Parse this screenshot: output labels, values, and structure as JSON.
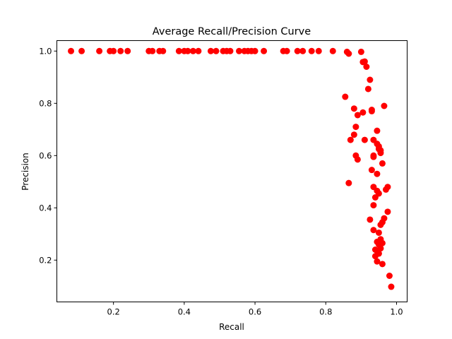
{
  "chart_data": {
    "type": "scatter",
    "title": "Average Recall/Precision Curve",
    "xlabel": "Recall",
    "ylabel": "Precision",
    "xlim": [
      0.04,
      1.03
    ],
    "ylim": [
      0.04,
      1.04
    ],
    "xticks": [
      0.2,
      0.4,
      0.6,
      0.8,
      1.0
    ],
    "xtick_labels": [
      "0.2",
      "0.4",
      "0.6",
      "0.8",
      "1.0"
    ],
    "yticks": [
      0.2,
      0.4,
      0.6,
      0.8,
      1.0
    ],
    "ytick_labels": [
      "0.2",
      "0.4",
      "0.6",
      "0.8",
      "1.0"
    ],
    "grid": false,
    "marker_color": "#ff0000",
    "series": [
      {
        "x": [
          0.08,
          0.11,
          0.16,
          0.19,
          0.2,
          0.22,
          0.24,
          0.3,
          0.31,
          0.33,
          0.34,
          0.385,
          0.4,
          0.41,
          0.425,
          0.44,
          0.475,
          0.49,
          0.51,
          0.52,
          0.53,
          0.555,
          0.57,
          0.58,
          0.59,
          0.6,
          0.625,
          0.68,
          0.69,
          0.72,
          0.735,
          0.76,
          0.78,
          0.82,
          0.86,
          0.865,
          0.9,
          0.905,
          0.91,
          0.915,
          0.925,
          0.855,
          0.92,
          0.93,
          0.965,
          0.88,
          0.89,
          0.905,
          0.93,
          0.935,
          0.945,
          0.885,
          0.95,
          0.88,
          0.87,
          0.91,
          0.935,
          0.945,
          0.95,
          0.955,
          0.885,
          0.935,
          0.955,
          0.89,
          0.96,
          0.93,
          0.945,
          0.865,
          0.935,
          0.975,
          0.97,
          0.945,
          0.95,
          0.94,
          0.935,
          0.975,
          0.965,
          0.96,
          0.925,
          0.955,
          0.935,
          0.95,
          0.945,
          0.955,
          0.96,
          0.95,
          0.94,
          0.955,
          0.945,
          0.95,
          0.94,
          0.945,
          0.96,
          0.98,
          0.985
        ],
        "y": [
          1.0,
          1.0,
          1.0,
          1.0,
          1.0,
          1.0,
          1.0,
          1.0,
          1.0,
          1.0,
          1.0,
          1.0,
          1.0,
          1.0,
          1.0,
          1.0,
          1.0,
          1.0,
          1.0,
          1.0,
          1.0,
          1.0,
          1.0,
          1.0,
          1.0,
          1.0,
          1.0,
          1.0,
          1.0,
          1.0,
          1.0,
          1.0,
          1.0,
          1.0,
          0.997,
          0.99,
          0.997,
          0.958,
          0.96,
          0.94,
          0.89,
          0.825,
          0.855,
          0.775,
          0.79,
          0.78,
          0.755,
          0.765,
          0.77,
          0.66,
          0.695,
          0.71,
          0.635,
          0.68,
          0.66,
          0.66,
          0.6,
          0.645,
          0.625,
          0.61,
          0.6,
          0.595,
          0.62,
          0.585,
          0.57,
          0.545,
          0.53,
          0.495,
          0.48,
          0.48,
          0.47,
          0.465,
          0.455,
          0.44,
          0.41,
          0.385,
          0.36,
          0.345,
          0.355,
          0.335,
          0.315,
          0.305,
          0.27,
          0.28,
          0.265,
          0.26,
          0.24,
          0.245,
          0.235,
          0.225,
          0.215,
          0.195,
          0.185,
          0.14,
          0.098
        ]
      }
    ]
  }
}
